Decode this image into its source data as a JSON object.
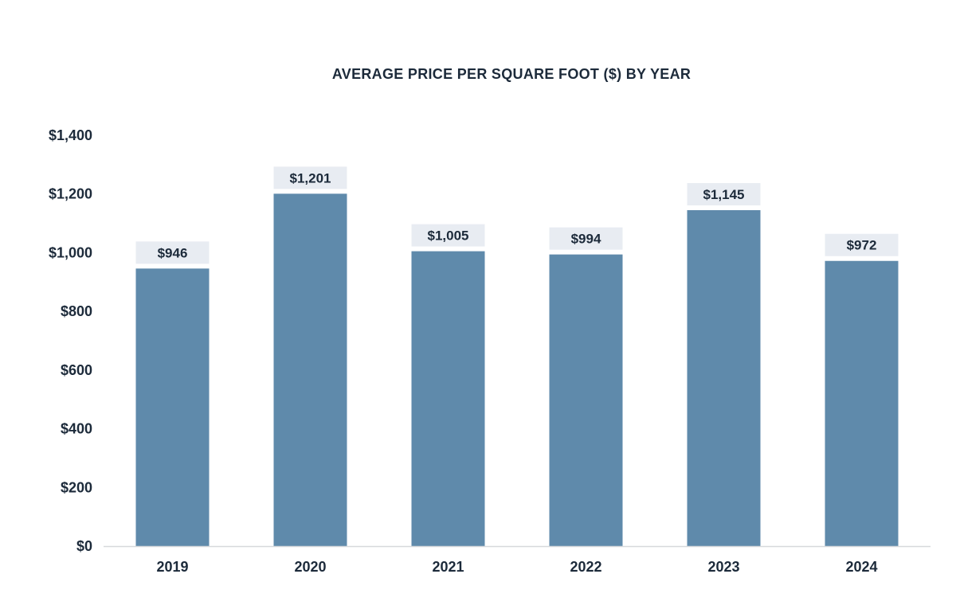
{
  "colors": {
    "bar": "#5f8aab",
    "label_box": "#e8ecf2",
    "text": "#1c2a3a",
    "axis": "#d7d9dc"
  },
  "chart_data": {
    "type": "bar",
    "title": "AVERAGE PRICE PER SQUARE FOOT ($) BY YEAR",
    "xlabel": "",
    "ylabel": "",
    "categories": [
      "2019",
      "2020",
      "2021",
      "2022",
      "2023",
      "2024"
    ],
    "values": [
      946,
      1201,
      1005,
      994,
      1145,
      972
    ],
    "data_labels": [
      "$946",
      "$1,201",
      "$1,005",
      "$994",
      "$1,145",
      "$972"
    ],
    "ylim": [
      0,
      1400
    ],
    "yticks": [
      0,
      200,
      400,
      600,
      800,
      1000,
      1200,
      1400
    ],
    "ytick_labels": [
      "$0",
      "$200",
      "$400",
      "$600",
      "$800",
      "$1,000",
      "$1,200",
      "$1,400"
    ],
    "grid": false,
    "legend": "none"
  }
}
